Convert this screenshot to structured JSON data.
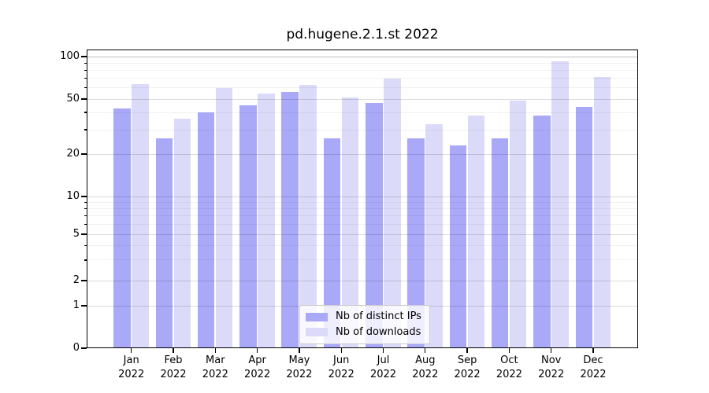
{
  "chart_data": {
    "type": "bar",
    "title": "pd.hugene.2.1.st 2022",
    "x_categories": [
      "Jan 2022",
      "Feb 2022",
      "Mar 2022",
      "Apr 2022",
      "May 2022",
      "Jun 2022",
      "Jul 2022",
      "Aug 2022",
      "Sep 2022",
      "Oct 2022",
      "Nov 2022",
      "Dec 2022"
    ],
    "series": [
      {
        "name": "Nb of distinct IPs",
        "color": "#a9a9f8",
        "values": [
          43,
          26,
          40,
          45,
          56,
          26,
          47,
          26,
          23,
          26,
          38,
          44
        ]
      },
      {
        "name": "Nb of downloads",
        "color": "#dbdbf9",
        "values": [
          64,
          36,
          60,
          55,
          63,
          51,
          70,
          33,
          38,
          49,
          93,
          72
        ]
      }
    ],
    "y_scale": "log (with 0 baseline)",
    "y_major_ticks": [
      0,
      1,
      2,
      5,
      10,
      20,
      50,
      100
    ],
    "y_minor_ticks": [
      3,
      4,
      6,
      7,
      8,
      9,
      30,
      40,
      60,
      70,
      80,
      90
    ],
    "ylim": [
      0,
      112
    ],
    "xlabel": "",
    "ylabel": "",
    "grid": "horizontal, major and minor, drawn over bars",
    "legend_position": "lower center"
  },
  "x_axis": {
    "months": [
      "Jan",
      "Feb",
      "Mar",
      "Apr",
      "May",
      "Jun",
      "Jul",
      "Aug",
      "Sep",
      "Oct",
      "Nov",
      "Dec"
    ],
    "year": "2022"
  },
  "colors": {
    "background": "#ffffff",
    "axis": "#000000",
    "grid_major": "rgba(0,0,0,0.14)",
    "grid_minor": "rgba(0,0,0,0.055)",
    "grid_top_line": "rgba(0,0,0,0.26)",
    "legend_border": "#cccccc"
  }
}
